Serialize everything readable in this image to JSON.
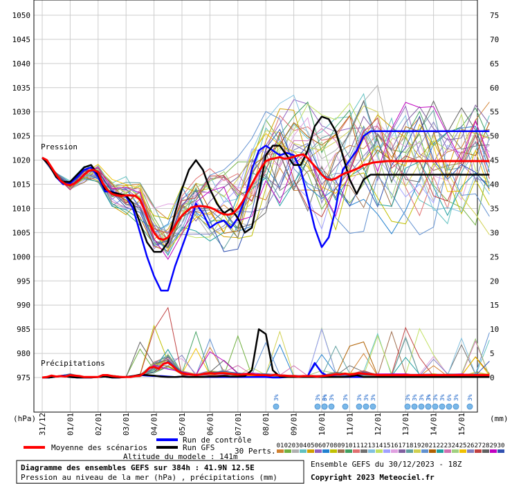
{
  "chart_data": {
    "type": "line",
    "title": "Diagramme des ensembles GEFS sur 384h : 41.9N 12.5E",
    "subtitle": "Pression au niveau de la mer (hPa) , précipitations (mm)",
    "altitude": "Altitude du modele : 141m",
    "run_info": "Ensemble GEFS du 30/12/2023 - 18Z",
    "copyright": "Copyright 2023 Meteociel.fr",
    "y_left_label": "(hPa)",
    "y_right_label": "(mm)",
    "label_pressure": "Pression",
    "label_precip": "Précipitations",
    "y_left_ticks": [
      1050,
      1045,
      1040,
      1035,
      1030,
      1025,
      1020,
      1015,
      1010,
      1005,
      1000,
      995,
      990,
      985,
      980,
      975
    ],
    "y_right_ticks": [
      75,
      70,
      65,
      60,
      55,
      50,
      45,
      40,
      35,
      30,
      25,
      20,
      15,
      10,
      5,
      0
    ],
    "ylim_hpa": [
      975,
      1050
    ],
    "ylim_mm": [
      0,
      75
    ],
    "x_ticks": [
      "31/12",
      "01/01",
      "02/01",
      "03/01",
      "04/01",
      "05/01",
      "06/01",
      "07/01",
      "08/01",
      "09/01",
      "10/01",
      "11/01",
      "12/01",
      "13/01",
      "14/01",
      "15/01"
    ],
    "grid": true,
    "legend": {
      "mean": "Moyenne des scénarios",
      "control": "Run de contrôle",
      "gfs": "Run GFS",
      "perts": "30 Perts.",
      "pert_numbers": [
        "01",
        "02",
        "03",
        "04",
        "05",
        "06",
        "07",
        "08",
        "09",
        "10",
        "11",
        "12",
        "13",
        "14",
        "15",
        "16",
        "17",
        "18",
        "19",
        "20",
        "21",
        "22",
        "23",
        "24",
        "25",
        "26",
        "27",
        "28",
        "29",
        "30"
      ],
      "pert_colors": [
        "#d08030",
        "#70b040",
        "#b0b0b0",
        "#60c0c0",
        "#d0a000",
        "#9060c0",
        "#2080d0",
        "#c0c000",
        "#a07050",
        "#40a060",
        "#e07070",
        "#707070",
        "#80c0e0",
        "#c0e060",
        "#a0a0ff",
        "#e0a0e0",
        "#8060a0",
        "#60a0a0",
        "#d0d050",
        "#6090d0",
        "#b06000",
        "#20a0a0",
        "#d070b0",
        "#a0d080",
        "#f0c000",
        "#8080c0",
        "#c04040",
        "#606060",
        "#c000c0",
        "#3050b0"
      ]
    },
    "snow_labels": [
      "3%",
      "3%",
      "6%",
      "3%",
      "3%",
      "3%",
      "3%",
      "3%",
      "3%",
      "3%",
      "3%",
      "3%",
      "3%",
      "3%",
      "6%",
      "3%",
      "3%",
      "3%",
      "3%"
    ],
    "series": [
      {
        "name": "Moyenne des scénarios",
        "color": "#ff0000",
        "x": [
          0,
          4,
          8,
          12,
          16,
          20,
          24,
          28,
          32,
          36,
          40,
          44,
          48,
          52,
          56,
          60,
          64,
          68,
          72,
          76,
          80,
          84,
          88,
          92,
          96,
          100,
          104,
          108,
          112,
          116,
          120,
          124,
          128,
          132,
          136,
          140,
          144,
          148,
          152,
          156,
          160,
          164,
          168,
          172,
          176,
          180,
          184,
          188,
          192,
          196,
          200,
          204,
          208,
          212,
          216,
          220,
          224,
          228,
          232,
          236,
          240,
          244,
          248,
          252,
          256,
          260,
          264,
          268,
          272,
          276,
          280,
          284,
          288,
          292,
          296,
          300,
          304,
          308,
          312,
          316,
          320,
          324,
          328,
          332,
          336,
          340,
          344,
          348,
          352,
          356,
          360,
          364,
          368,
          372,
          376,
          380,
          384
        ],
        "values": [
          1020.5,
          1020,
          1018.5,
          1017,
          1015.7,
          1015,
          1014.8,
          1015.2,
          1016,
          1017,
          1017.8,
          1018,
          1017.5,
          1015.2,
          1013.8,
          1013,
          1012.7,
          1012.6,
          1012.7,
          1012.7,
          1012.6,
          1011.8,
          1009.6,
          1007,
          1005,
          1003.8,
          1003.5,
          1004,
          1005.5,
          1007.2,
          1008.5,
          1009.4,
          1010.2,
          1010.4,
          1010.5,
          1010.4,
          1010.2,
          1009.8,
          1009.2,
          1008.8,
          1008.7,
          1009,
          1010,
          1011.4,
          1013.2,
          1015,
          1016.8,
          1018.4,
          1019.8,
          1020.2,
          1020.4,
          1020.6,
          1020.3,
          1020.4,
          1020.7,
          1021,
          1021.2,
          1020.4,
          1019.3,
          1018.2,
          1017,
          1016.1,
          1015.9,
          1016.2,
          1016.8,
          1017.3,
          1017.6,
          1018,
          1018.4,
          1019,
          1019.2,
          1019.5,
          1019.6,
          1019.7,
          1019.8,
          1019.8,
          1019.8,
          1019.8,
          1019.8,
          1019.8,
          1019.8,
          1019.8,
          1019.8,
          1019.8,
          1019.8,
          1019.8,
          1019.8,
          1019.8,
          1019.8,
          1019.8,
          1019.8,
          1019.8,
          1019.8,
          1019.8,
          1019.8,
          1019.8,
          1019.8
        ],
        "precip": [
          0,
          0.1,
          0.4,
          0.2,
          0.3,
          0.2,
          0.5,
          0.4,
          0.3,
          0.1,
          0.1,
          0.1,
          0.1,
          0.5,
          0.5,
          0.3,
          0.2,
          0.1,
          0.1,
          0.1,
          0.3,
          0.4,
          1,
          2,
          2.2,
          1.8,
          2.8,
          3.1,
          2.4,
          1.4,
          0.9,
          0.7,
          0.6,
          0.5,
          0.6,
          0.8,
          0.9,
          0.8,
          0.9,
          0.9,
          0.8,
          0.7,
          0.6,
          0.6,
          0.7,
          0.6,
          0.5,
          0.5,
          0.5,
          0.4,
          0.6,
          0.4,
          0.4,
          0.3,
          0.3,
          0.2,
          0.3,
          0.3,
          0.3,
          0.2,
          0.3,
          0.4,
          0.5,
          0.7,
          0.6,
          0.8,
          0.6,
          0.7,
          0.9,
          0.8,
          0.7,
          0.6,
          0.5,
          0.5,
          0.5,
          0.5,
          0.5,
          0.5,
          0.5,
          0.5,
          0.5,
          0.5,
          0.5,
          0.5,
          0.5,
          0.5,
          0.5,
          0.5,
          0.5,
          0.5,
          0.5,
          0.5,
          0.5,
          0.5,
          0.5,
          0.5,
          0.5
        ]
      },
      {
        "name": "Run de contrôle",
        "color": "#0000ff",
        "x": [
          0,
          6,
          12,
          18,
          24,
          30,
          36,
          42,
          48,
          54,
          60,
          66,
          72,
          78,
          84,
          90,
          96,
          102,
          108,
          114,
          120,
          126,
          132,
          138,
          144,
          150,
          156,
          162,
          168,
          174,
          180,
          186,
          192,
          198,
          204,
          210,
          216,
          222,
          228,
          234,
          240,
          246,
          252,
          258,
          264,
          270,
          276,
          282,
          288,
          294,
          300,
          306,
          312,
          318,
          324,
          330,
          336,
          342,
          348,
          354,
          360,
          366,
          372,
          378,
          384
        ],
        "values": [
          1020.5,
          1019,
          1016.5,
          1015,
          1015.2,
          1016.5,
          1018,
          1018.5,
          1016.5,
          1013.5,
          1013.5,
          1013,
          1012.5,
          1010,
          1005,
          1000,
          996,
          993,
          993,
          998,
          1002,
          1006,
          1011,
          1009,
          1006,
          1007,
          1007.5,
          1006,
          1008,
          1012,
          1018,
          1022,
          1023,
          1022,
          1021,
          1021.5,
          1021,
          1018,
          1012,
          1006,
          1002,
          1004,
          1010,
          1018,
          1020,
          1022,
          1025,
          1026,
          1026,
          1026,
          1026,
          1026,
          1026,
          1026,
          1026,
          1026,
          1026,
          1026,
          1026,
          1026,
          1026,
          1026,
          1026,
          1026,
          1026
        ],
        "precip": [
          0,
          0,
          0.2,
          0.4,
          0.1,
          0,
          0,
          0,
          0.1,
          0.2,
          0,
          0,
          0.1,
          0.3,
          0.5,
          0.4,
          0.3,
          0.3,
          0.2,
          0.1,
          0.2,
          0.1,
          0.1,
          0.1,
          0.1,
          0.1,
          0.1,
          0.1,
          0.1,
          0.1,
          0.1,
          0.1,
          0.1,
          0,
          0,
          0.1,
          0.1,
          0.1,
          0.3,
          3,
          1,
          0.2,
          0.1,
          0.1,
          0.1,
          0.1,
          0.1,
          0.1,
          0.1,
          0.1,
          0.1,
          0.1,
          0.1,
          0.1,
          0.1,
          0.1,
          0.1,
          0.1,
          0.1,
          0.1,
          0.1,
          0.1,
          0.1,
          0.1,
          0.1
        ]
      },
      {
        "name": "Run GFS",
        "color": "#000000",
        "x": [
          0,
          6,
          12,
          18,
          24,
          30,
          36,
          42,
          48,
          54,
          60,
          66,
          72,
          78,
          84,
          90,
          96,
          102,
          108,
          114,
          120,
          126,
          132,
          138,
          144,
          150,
          156,
          162,
          168,
          174,
          180,
          186,
          192,
          198,
          204,
          210,
          216,
          222,
          228,
          234,
          240,
          246,
          252,
          258,
          264,
          270,
          276,
          282,
          288,
          294,
          300,
          306,
          312,
          318,
          324,
          330,
          336,
          342,
          348,
          354,
          360,
          366,
          372,
          378,
          384
        ],
        "values": [
          1020.5,
          1019,
          1016.5,
          1015.5,
          1015.5,
          1017,
          1018.5,
          1019,
          1017,
          1014,
          1013.3,
          1013,
          1012.7,
          1011,
          1007,
          1003,
          1001,
          1001,
          1003,
          1009,
          1014,
          1018,
          1020,
          1018,
          1014,
          1011,
          1009,
          1010,
          1008,
          1005,
          1006,
          1013,
          1021,
          1023,
          1023,
          1021,
          1019,
          1019,
          1022,
          1027,
          1029,
          1028.5,
          1026,
          1021,
          1016,
          1013,
          1016,
          1017,
          1017,
          1017,
          1017,
          1017,
          1017,
          1017,
          1017,
          1017,
          1017,
          1017,
          1017,
          1017,
          1017,
          1017,
          1017,
          1017,
          1017
        ],
        "precip": [
          0,
          0,
          0.2,
          0.3,
          0.1,
          0,
          0,
          0,
          0.1,
          0.2,
          0,
          0,
          0.1,
          0.3,
          0.6,
          0.5,
          0.4,
          0.2,
          0.1,
          0.1,
          0.2,
          0.1,
          0.1,
          0.1,
          0.2,
          0.2,
          0.3,
          0.2,
          0.2,
          0.3,
          1.5,
          10,
          9,
          1.5,
          0.2,
          0.1,
          0.1,
          0.1,
          0.1,
          0.1,
          0.1,
          0.1,
          0.1,
          0.1,
          0.2,
          0.5,
          0.1,
          0.1,
          0.1,
          0.1,
          0.1,
          0.1,
          0.1,
          0.1,
          0.1,
          0.1,
          0.1,
          0.1,
          0.1,
          0.1,
          0.1,
          0.1,
          0.1,
          0.1,
          0.1
        ]
      }
    ]
  }
}
